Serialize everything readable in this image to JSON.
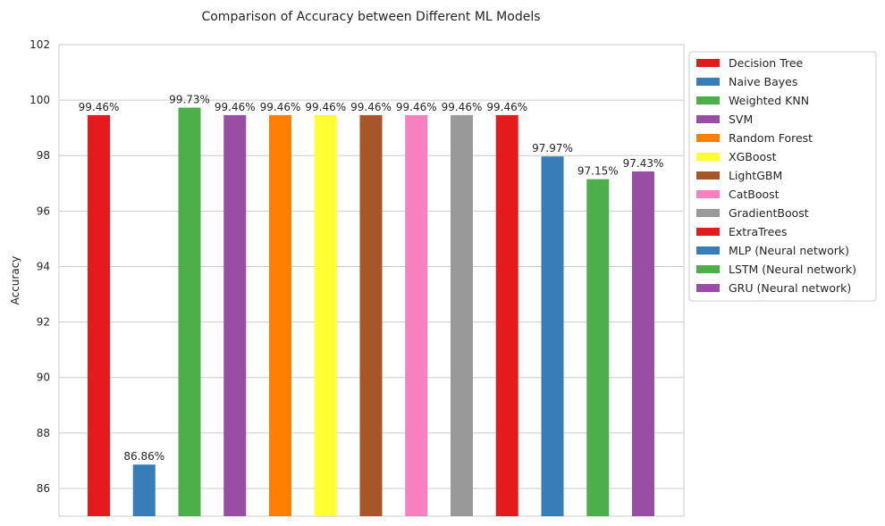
{
  "chart_data": {
    "type": "bar",
    "title": "Comparison of Accuracy between Different ML Models",
    "xlabel": "",
    "ylabel": "Accuracy",
    "ylim": [
      85,
      102
    ],
    "yticks": [
      86,
      88,
      90,
      92,
      94,
      96,
      98,
      100,
      102
    ],
    "grid": true,
    "legend_position": "outside-right",
    "categories": [
      "Decision Tree",
      "Naive Bayes",
      "Weighted KNN",
      "SVM",
      "Random Forest",
      "XGBoost",
      "LightGBM",
      "CatBoost",
      "GradientBoost",
      "ExtraTrees",
      "MLP (Neural network)",
      "LSTM (Neural network)",
      "GRU (Neural network)"
    ],
    "values": [
      99.46,
      86.86,
      99.73,
      99.46,
      99.46,
      99.46,
      99.46,
      99.46,
      99.46,
      99.46,
      97.97,
      97.15,
      97.43
    ],
    "value_labels": [
      "99.46%",
      "86.86%",
      "99.73%",
      "99.46%",
      "99.46%",
      "99.46%",
      "99.46%",
      "99.46%",
      "99.46%",
      "99.46%",
      "97.97%",
      "97.15%",
      "97.43%"
    ],
    "colors": [
      "#e41a1c",
      "#377eb8",
      "#4daf4a",
      "#984ea3",
      "#ff7f00",
      "#ffff33",
      "#a65628",
      "#f781bf",
      "#999999",
      "#e41a1c",
      "#377eb8",
      "#4daf4a",
      "#984ea3"
    ]
  }
}
